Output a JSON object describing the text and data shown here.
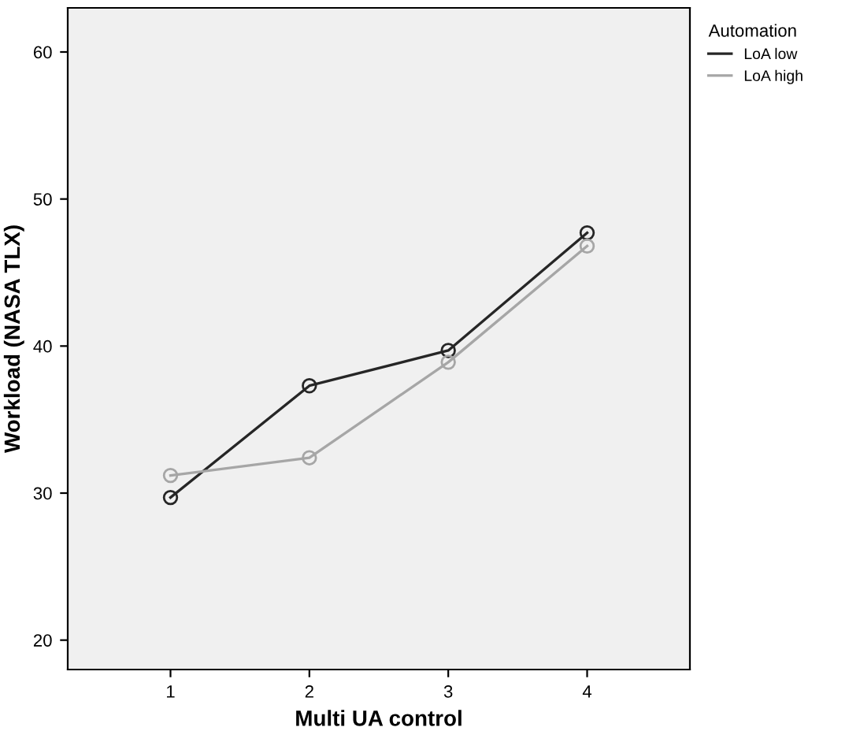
{
  "chart_data": {
    "type": "line",
    "xlabel": "Multi UA control",
    "ylabel": "Workload (NASA TLX)",
    "legend_title": "Automation",
    "categories": [
      "1",
      "2",
      "3",
      "4"
    ],
    "series": [
      {
        "name": "LoA low",
        "color": "#262626",
        "values": [
          29.7,
          37.3,
          39.7,
          47.7
        ]
      },
      {
        "name": "LoA high",
        "color": "#a6a6a6",
        "values": [
          31.2,
          32.4,
          38.9,
          46.8
        ]
      }
    ],
    "ylim": [
      18,
      63
    ],
    "yticks": [
      20,
      30,
      40,
      50,
      60
    ],
    "marker": "circle",
    "line_style": "solid",
    "legend": "top right",
    "grid": false
  }
}
